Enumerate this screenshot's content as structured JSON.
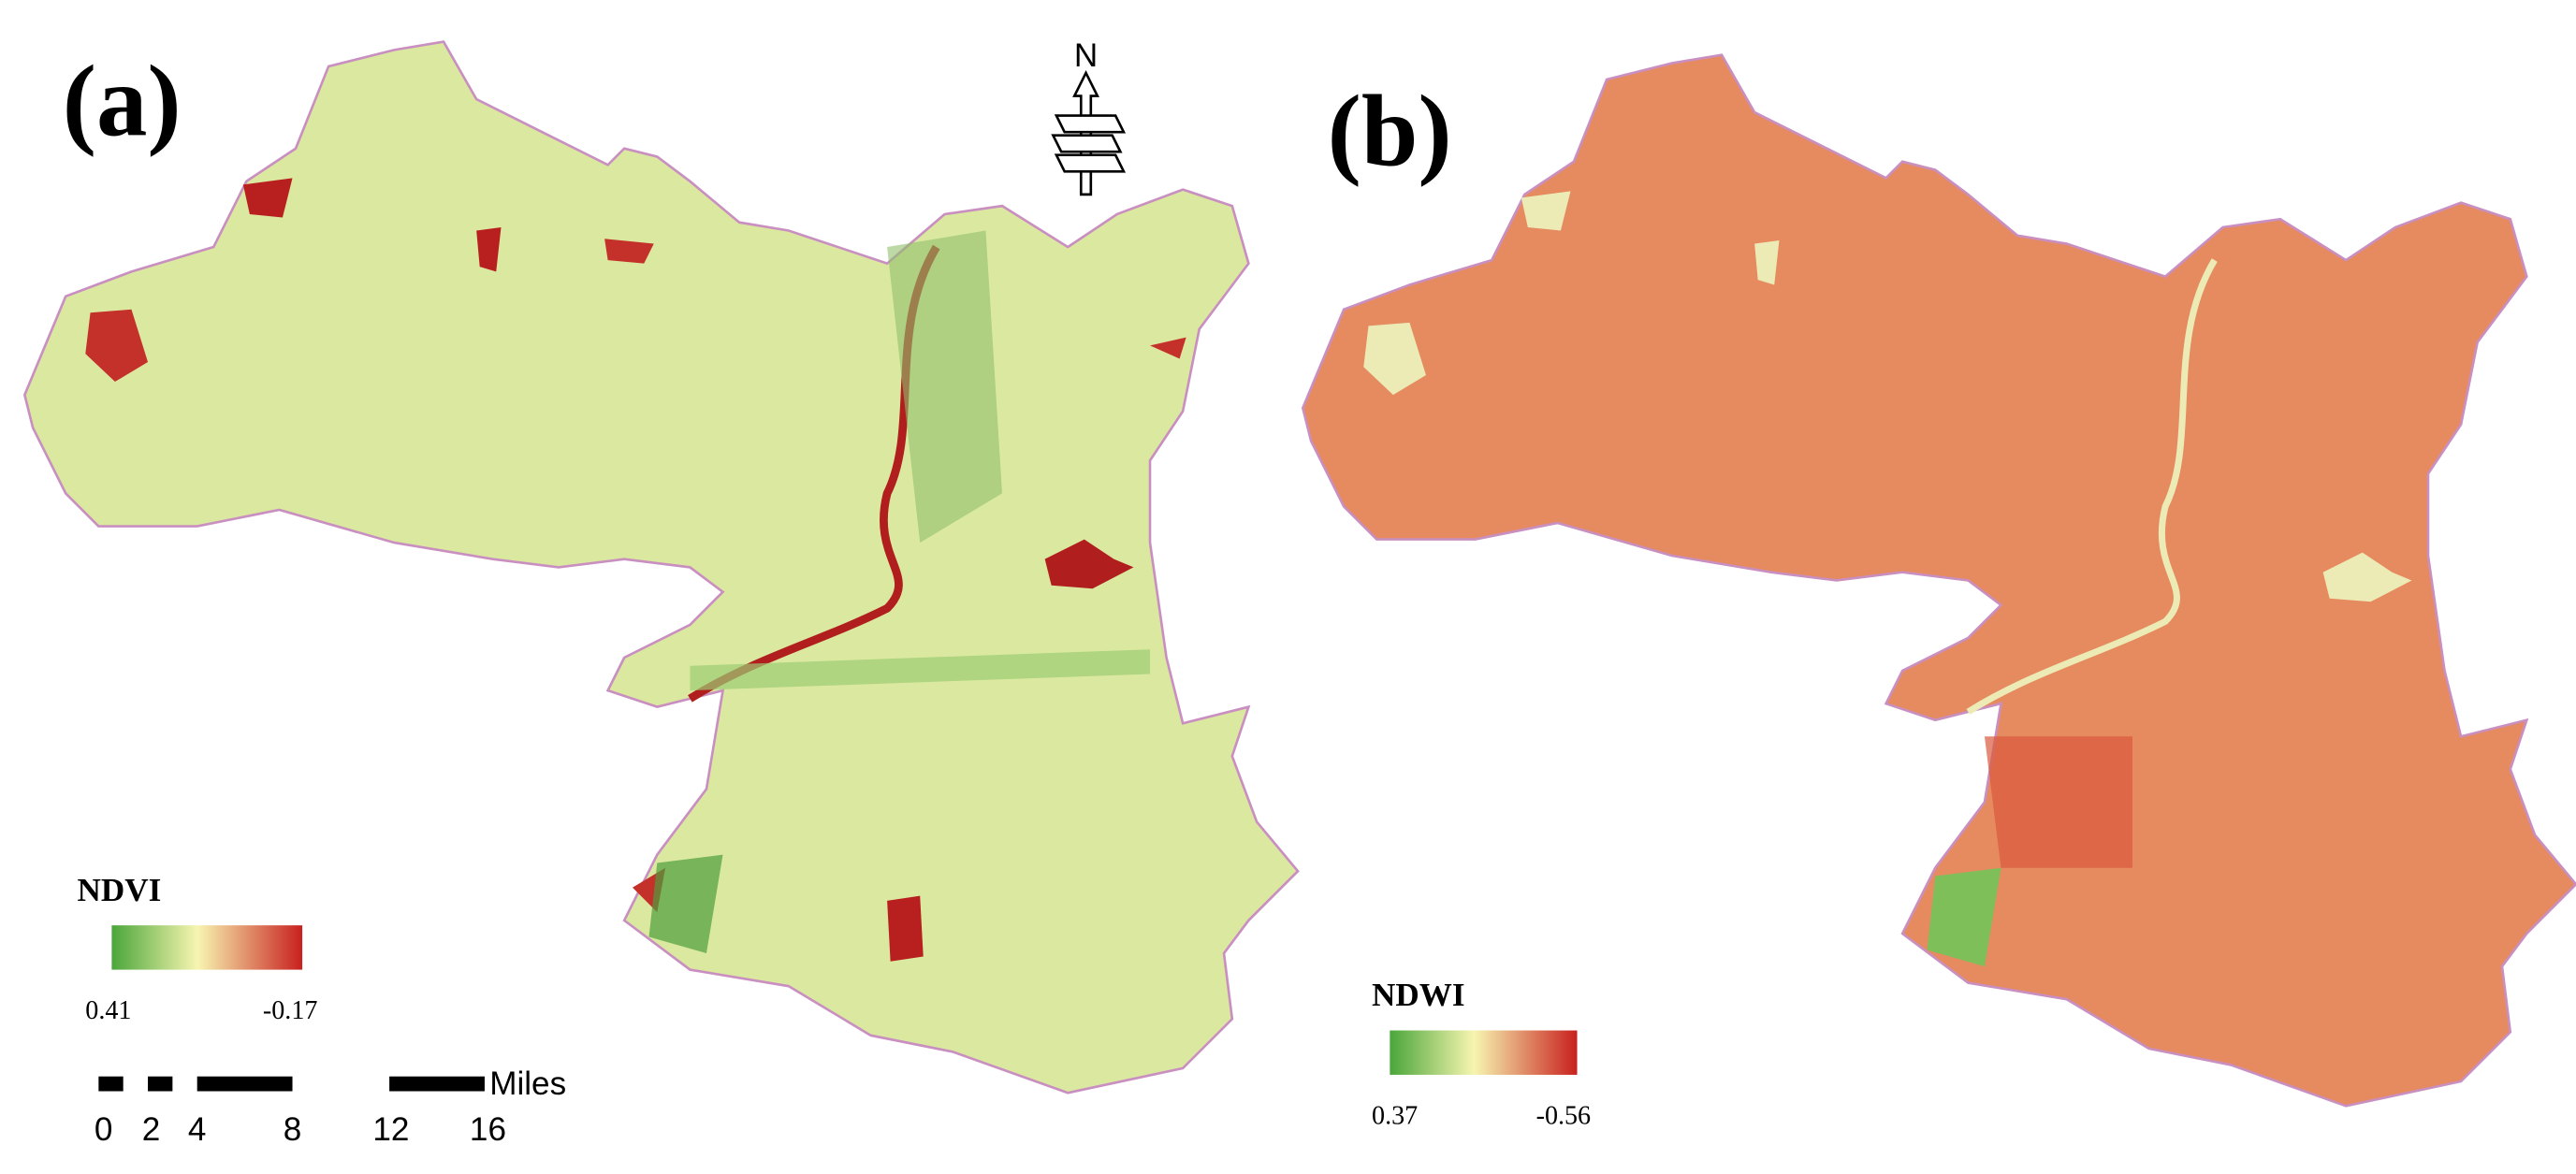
{
  "panels": [
    {
      "label": "(a)",
      "legend": {
        "title": "NDVI",
        "high": "0.41",
        "low": "-0.17"
      }
    },
    {
      "label": "(b)",
      "legend": {
        "title": "NDWI",
        "high": "0.37",
        "low": "-0.56"
      }
    }
  ],
  "north_arrow": {
    "label": "N"
  },
  "scale_bar": {
    "ticks": [
      "0",
      "2",
      "4",
      "8",
      "12",
      "16"
    ],
    "unit": "Miles"
  }
}
